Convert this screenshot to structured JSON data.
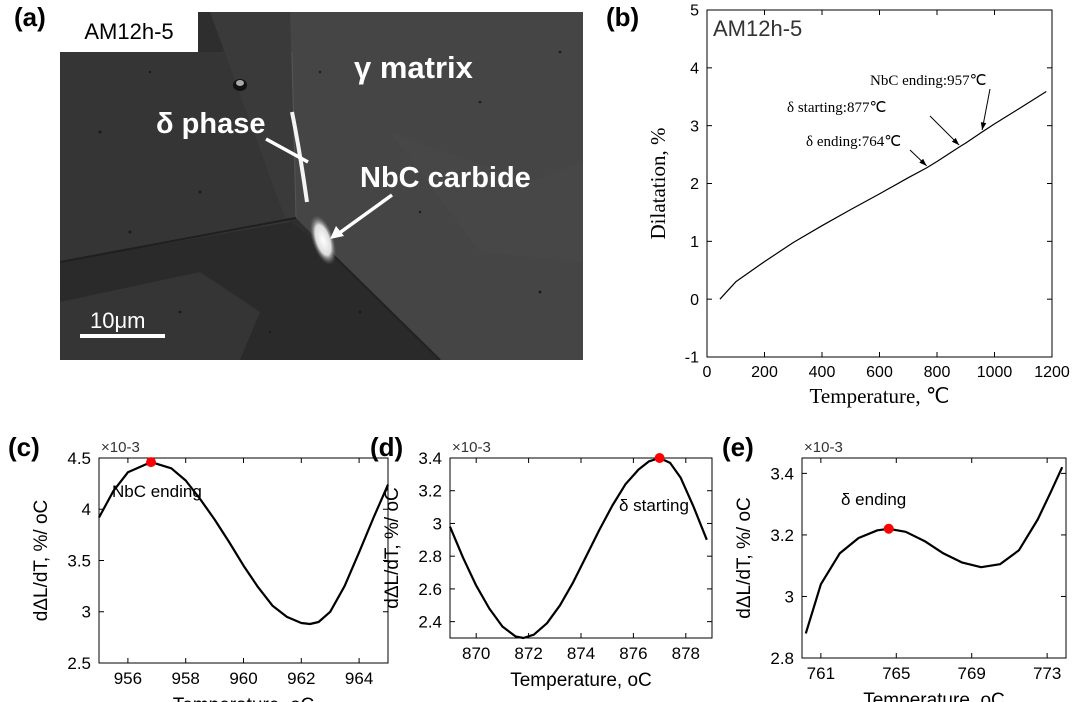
{
  "panel_a": {
    "letter": "(a)",
    "sample_label": "AM12h-5",
    "labels": {
      "matrix": "γ matrix",
      "phase": "δ phase",
      "carbide": "NbC carbide"
    },
    "scale_bar": "10μm"
  },
  "chart_data": [
    {
      "id": "b",
      "type": "line",
      "panel_label": "(b)",
      "inset_title": "AM12h-5",
      "xlabel": "Temperature, ℃",
      "ylabel": "Dilatation, %",
      "xlim": [
        0,
        1200
      ],
      "ylim": [
        -1,
        5
      ],
      "xticks": [
        "0",
        "200",
        "400",
        "600",
        "800",
        "1000",
        "1200"
      ],
      "yticks": [
        "-1",
        "0",
        "1",
        "2",
        "3",
        "4",
        "5"
      ],
      "series": [
        {
          "x": [
            45,
            100,
            200,
            300,
            400,
            500,
            600,
            700,
            764,
            800,
            877,
            900,
            957,
            1000,
            1100,
            1180
          ],
          "y": [
            0.0,
            0.3,
            0.65,
            0.98,
            1.27,
            1.55,
            1.82,
            2.1,
            2.27,
            2.38,
            2.63,
            2.7,
            2.89,
            3.03,
            3.34,
            3.59
          ]
        }
      ],
      "annotations": [
        {
          "text": "NbC ending:957℃",
          "x": 957,
          "y": 2.89
        },
        {
          "text": "δ starting:877℃",
          "x": 877,
          "y": 2.63
        },
        {
          "text": "δ ending:764℃",
          "x": 764,
          "y": 2.27
        }
      ]
    },
    {
      "id": "c",
      "type": "line",
      "panel_label": "(c)",
      "multiplier": "×10-3",
      "xlabel": "Temperature, oC",
      "ylabel": "dΔL/dT, %/ oC",
      "xlim": [
        955,
        965
      ],
      "ylim": [
        2.5,
        4.5
      ],
      "xticks": [
        "956",
        "958",
        "960",
        "962",
        "964"
      ],
      "yticks": [
        "2.5",
        "3",
        "3.5",
        "4",
        "4.5"
      ],
      "series": [
        {
          "x": [
            955,
            955.5,
            956,
            956.8,
            957.5,
            958,
            958.5,
            959,
            959.5,
            960,
            960.5,
            961,
            961.5,
            962,
            962.3,
            962.6,
            963,
            963.5,
            964,
            964.5,
            965
          ],
          "y": [
            3.92,
            4.18,
            4.36,
            4.46,
            4.4,
            4.28,
            4.1,
            3.9,
            3.68,
            3.45,
            3.24,
            3.06,
            2.95,
            2.89,
            2.88,
            2.9,
            3.0,
            3.25,
            3.58,
            3.92,
            4.24
          ]
        }
      ],
      "marker": {
        "x": 956.8,
        "y": 4.46,
        "color": "#ff0000"
      },
      "annotations": [
        {
          "text": "NbC ending",
          "x": 956.8,
          "y": 4.46
        }
      ]
    },
    {
      "id": "d",
      "type": "line",
      "panel_label": "(d)",
      "multiplier": "×10-3",
      "xlabel": "Temperature, oC",
      "ylabel": "dΔL/dT, %/ oC",
      "xlim": [
        869,
        879
      ],
      "ylim": [
        2.3,
        3.4
      ],
      "xticks": [
        "870",
        "872",
        "874",
        "876",
        "878"
      ],
      "yticks": [
        "2.4",
        "2.6",
        "2.8",
        "3",
        "3.2",
        "3.4"
      ],
      "series": [
        {
          "x": [
            869,
            869.5,
            870,
            870.5,
            871,
            871.5,
            871.8,
            872.2,
            872.7,
            873.2,
            873.7,
            874.2,
            874.7,
            875.2,
            875.7,
            876.2,
            876.6,
            877,
            877.4,
            877.8,
            878.3,
            878.8
          ],
          "y": [
            2.98,
            2.79,
            2.62,
            2.48,
            2.37,
            2.31,
            2.3,
            2.32,
            2.39,
            2.5,
            2.64,
            2.8,
            2.96,
            3.11,
            3.24,
            3.33,
            3.38,
            3.4,
            3.37,
            3.28,
            3.1,
            2.9
          ]
        }
      ],
      "marker": {
        "x": 877,
        "y": 3.4,
        "color": "#ff0000"
      },
      "annotations": [
        {
          "text": "δ starting",
          "x": 877,
          "y": 3.4
        }
      ]
    },
    {
      "id": "e",
      "type": "line",
      "panel_label": "(e)",
      "multiplier": "×10-3",
      "xlabel": "Temperature, oC",
      "ylabel": "dΔL/dT, %/ oC",
      "xlim": [
        760,
        774
      ],
      "ylim": [
        2.8,
        3.45
      ],
      "xticks": [
        "761",
        "765",
        "769",
        "773"
      ],
      "yticks": [
        "2.8",
        "3",
        "3.2",
        "3.4"
      ],
      "series": [
        {
          "x": [
            760.2,
            761,
            762,
            763,
            764,
            764.6,
            765.5,
            766.5,
            767.5,
            768.5,
            769.5,
            770.5,
            771.5,
            772.5,
            773.2,
            773.8
          ],
          "y": [
            2.88,
            3.04,
            3.14,
            3.19,
            3.215,
            3.22,
            3.21,
            3.18,
            3.14,
            3.11,
            3.095,
            3.105,
            3.15,
            3.25,
            3.34,
            3.42
          ]
        }
      ],
      "marker": {
        "x": 764.6,
        "y": 3.22,
        "color": "#ff0000"
      },
      "annotations": [
        {
          "text": "δ ending",
          "x": 764.6,
          "y": 3.22
        }
      ]
    }
  ]
}
